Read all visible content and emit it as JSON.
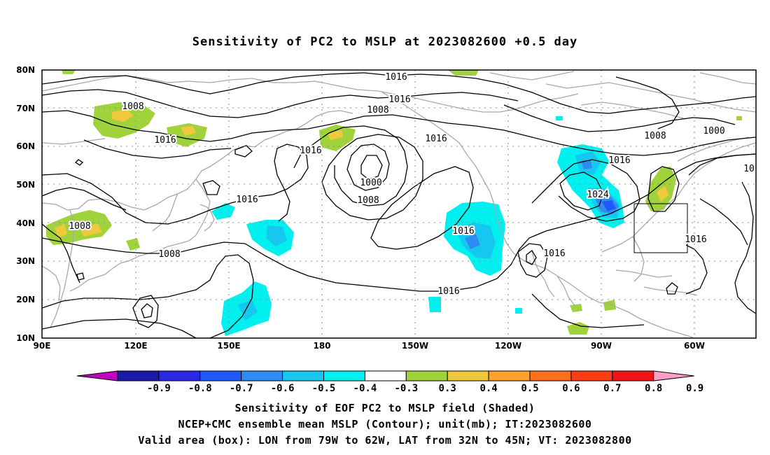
{
  "title": "Sensitivity of PC2 to MSLP at 2023082600 +0.5 day",
  "map": {
    "lat_labels": [
      "80N",
      "70N",
      "60N",
      "50N",
      "40N",
      "30N",
      "20N",
      "10N"
    ],
    "lon_labels": [
      "90E",
      "120E",
      "150E",
      "180",
      "150W",
      "120W",
      "90W",
      "60W"
    ],
    "lon_range": [
      "90E",
      "45W"
    ],
    "lat_range": [
      "10N",
      "80N"
    ],
    "contour_labels": [
      "1016",
      "1016",
      "1008",
      "1008",
      "1016",
      "1016",
      "1016",
      "1016",
      "1000",
      "1008",
      "1016",
      "1008",
      "1000",
      "1016",
      "1024",
      "1016",
      "1008",
      "1016",
      "1008",
      "1016",
      "1016",
      "1016",
      "10"
    ],
    "valid_box": {
      "lon_west": "79W",
      "lon_east": "62W",
      "lat_south": "32N",
      "lat_north": "45N"
    },
    "colors": {
      "coast": "#a8a8a8",
      "contour": "#000000",
      "grid": "#8c8c8c"
    }
  },
  "colorbar": {
    "labels": [
      "-0.9",
      "-0.8",
      "-0.7",
      "-0.6",
      "-0.5",
      "-0.4",
      "-0.3",
      "0.3",
      "0.4",
      "0.5",
      "0.6",
      "0.7",
      "0.8",
      "0.9"
    ],
    "colors": [
      "#c000c0",
      "#1a1aa6",
      "#2828e6",
      "#1e5aff",
      "#2e8cf0",
      "#16c8f0",
      "#00f0f0",
      "#ffffff",
      "#a0d23c",
      "#f0c83c",
      "#ffa028",
      "#ff6e1e",
      "#ff3c14",
      "#f01414",
      "#ff9ec8"
    ]
  },
  "caption": {
    "line1": "Sensitivity of EOF PC2 to MSLP field (Shaded)",
    "line2": "NCEP+CMC ensemble mean MSLP (Contour); unit(mb); IT:2023082600",
    "line3": "Valid area (box): LON from 79W to 62W, LAT from 32N to 45N; VT: 2023082800"
  }
}
